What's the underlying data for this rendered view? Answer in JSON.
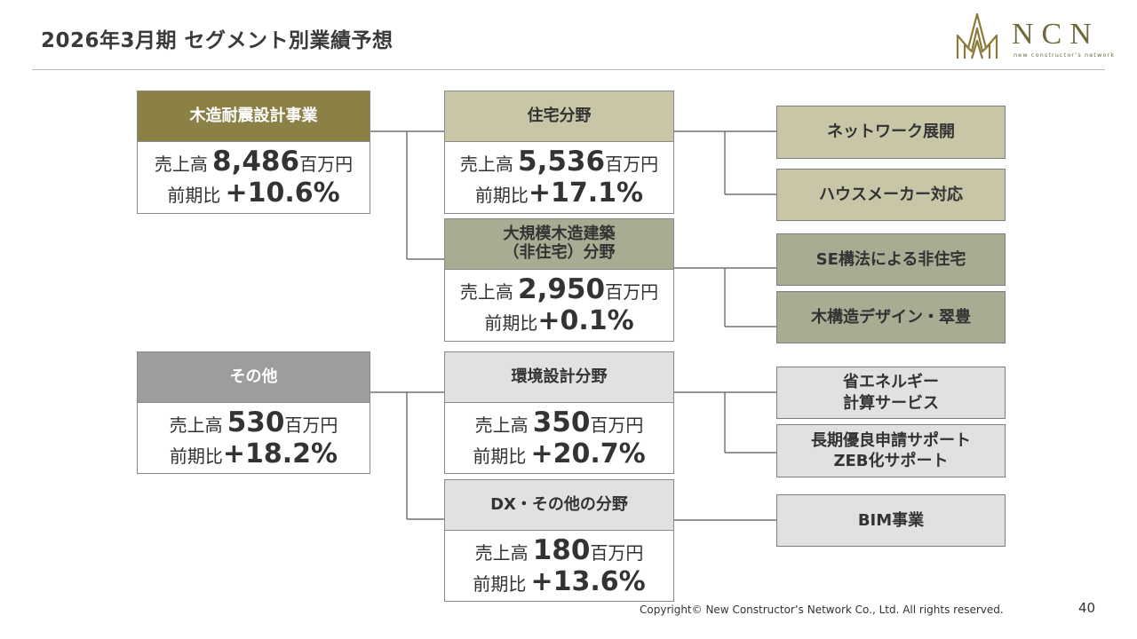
{
  "page": {
    "title": "2026年3月期 セグメント別業績予想",
    "footer": "Copyright© New Constructor’s Network Co., Ltd. All rights reserved.",
    "page_number": "40"
  },
  "logo": {
    "text": "NCN",
    "subtext": "new constructor’s network"
  },
  "labels": {
    "sales": "売上高",
    "yoy": "前期比",
    "unit": "百万円"
  },
  "segments": {
    "wood": {
      "name": "木造耐震設計事業",
      "sales": "8,486",
      "yoy": "+10.6%"
    },
    "other": {
      "name": "その他",
      "sales": "530",
      "yoy": "+18.2%"
    }
  },
  "fields": {
    "housing": {
      "name": "住宅分野",
      "sales": "5,536",
      "yoy": "+17.1%"
    },
    "large": {
      "name_line1": "大規模木造建築",
      "name_line2": "（非住宅）分野",
      "sales": "2,950",
      "yoy": "+0.1%"
    },
    "env": {
      "name": "環境設計分野",
      "sales": "350",
      "yoy": "+20.7%"
    },
    "dx": {
      "name": "DX・その他の分野",
      "sales": "180",
      "yoy": "+13.6%"
    }
  },
  "leaves": {
    "network": "ネットワーク展開",
    "housemaker": "ハウスメーカー対応",
    "se": "SE構法による非住宅",
    "wood_design": "木構造デザイン・翠豊",
    "energy_line1": "省エネルギー",
    "energy_line2": "計算サービス",
    "longterm_line1": "長期優良申請サポート",
    "longterm_line2": "ZEB化サポート",
    "bim": "BIM事業"
  },
  "colors": {
    "gold": "#8b8147",
    "tan": "#c9c6a8",
    "sage": "#a7ad92",
    "gray": "#9d9d9d",
    "light_gray": "#e1e1e1"
  }
}
